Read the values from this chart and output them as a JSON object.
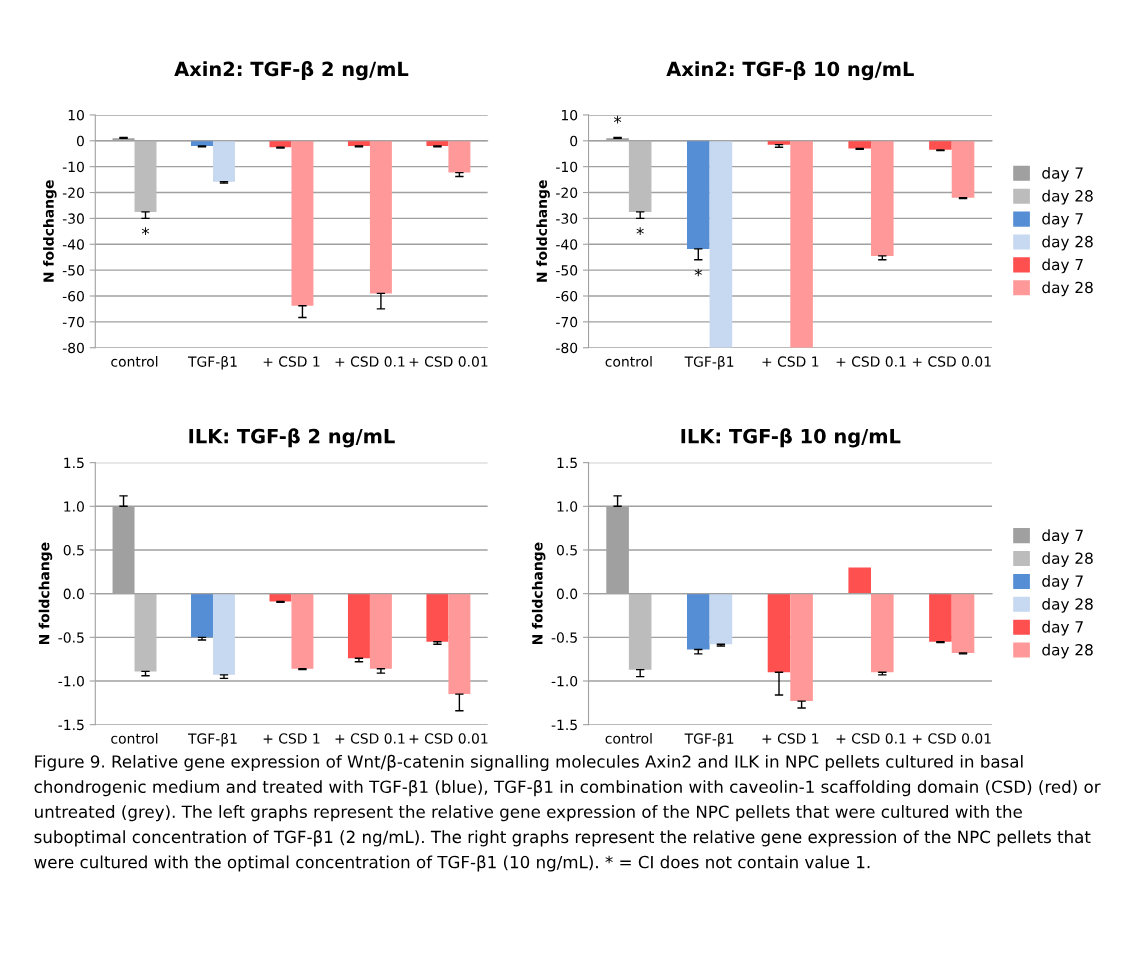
{
  "chart_data": [
    {
      "type": "bar",
      "title": "Axin2: TGF-β 2 ng/mL",
      "ylabel": "N foldchange",
      "categories": [
        "control",
        "TGF-β1",
        "+ CSD 1",
        "+ CSD 0.1",
        "+ CSD 0.01"
      ],
      "ylim": [
        -80,
        10
      ],
      "yticks": [
        -80,
        -70,
        -60,
        -50,
        -40,
        -30,
        -20,
        -10,
        0,
        10
      ],
      "grid": "y",
      "legend": false,
      "series": [
        {
          "color": "#a0a0a0",
          "values": [
            1,
            null,
            null,
            null,
            null
          ],
          "errors": [
            [
              1,
              1.3
            ],
            null,
            null,
            null,
            null
          ]
        },
        {
          "color": "#bcbcbc",
          "values": [
            -27.5,
            null,
            null,
            null,
            null
          ],
          "errors": [
            [
              -30,
              -27.5
            ],
            null,
            null,
            null,
            null
          ]
        },
        {
          "color": "#558ed5",
          "values": [
            null,
            -2,
            null,
            null,
            null
          ],
          "errors": [
            null,
            [
              -2.3,
              -2
            ],
            null,
            null,
            null
          ]
        },
        {
          "color": "#c6d9f1",
          "values": [
            null,
            -15.8,
            null,
            null,
            null
          ],
          "errors": [
            null,
            [
              -16.3,
              -15.8
            ],
            null,
            null,
            null
          ]
        },
        {
          "color": "#ff5050",
          "values": [
            null,
            null,
            -2.5,
            -2,
            -2
          ],
          "errors": [
            null,
            null,
            [
              -2.8,
              -2.5
            ],
            [
              -2.3,
              -2
            ],
            [
              -2.3,
              -2
            ]
          ]
        },
        {
          "color": "#ff9999",
          "values": [
            null,
            null,
            -63.8,
            -59,
            -12.3
          ],
          "errors": [
            null,
            null,
            [
              -68.3,
              -63.8
            ],
            [
              -65,
              -59
            ],
            [
              -13.8,
              -12.3
            ]
          ]
        }
      ],
      "annotations": [
        {
          "text": "*",
          "x": "control",
          "y": -27.5
        }
      ]
    },
    {
      "type": "bar",
      "title": "Axin2: TGF-β 10 ng/mL",
      "ylabel": "N foldchange",
      "categories": [
        "control",
        "TGF-β1",
        "+ CSD 1",
        "+ CSD 0.1",
        "+ CSD 0.01"
      ],
      "ylim": [
        -80,
        10
      ],
      "yticks": [
        -80,
        -70,
        -60,
        -50,
        -40,
        -30,
        -20,
        -10,
        0,
        10
      ],
      "grid": "y",
      "legend": "right",
      "series": [
        {
          "name": "day 7",
          "color": "#a0a0a0",
          "values": [
            1,
            null,
            null,
            null,
            null
          ],
          "errors": [
            [
              1,
              1.3
            ],
            null,
            null,
            null,
            null
          ]
        },
        {
          "name": "day 28",
          "color": "#bcbcbc",
          "values": [
            -27.5,
            null,
            null,
            null,
            null
          ],
          "errors": [
            [
              -30,
              -27.5
            ],
            null,
            null,
            null,
            null
          ]
        },
        {
          "name": "day 7",
          "color": "#558ed5",
          "values": [
            null,
            -41.8,
            null,
            null,
            null
          ],
          "errors": [
            null,
            [
              -46,
              -41.8
            ],
            null,
            null,
            null
          ]
        },
        {
          "name": "day 28",
          "color": "#c6d9f1",
          "values": [
            null,
            -80,
            null,
            null,
            null
          ],
          "errors": [
            null,
            null,
            null,
            null,
            null
          ]
        },
        {
          "name": "day 7",
          "color": "#ff5050",
          "values": [
            null,
            null,
            -1.5,
            -3,
            -3.5
          ],
          "errors": [
            null,
            null,
            [
              -2.5,
              -1.5
            ],
            [
              -3.3,
              -3
            ],
            [
              -3.8,
              -3.5
            ]
          ]
        },
        {
          "name": "day 28",
          "color": "#ff9999",
          "values": [
            null,
            null,
            -80,
            -44.5,
            -22
          ],
          "errors": [
            null,
            null,
            null,
            [
              -46,
              -44.5
            ],
            [
              -22.3,
              -22
            ]
          ]
        }
      ],
      "annotations": [
        {
          "text": "*",
          "x": "control",
          "y": 1
        },
        {
          "text": "*",
          "x": "control",
          "y": -27.5
        },
        {
          "text": "*",
          "x": "TGF-β1",
          "y": -41.8
        }
      ]
    },
    {
      "type": "bar",
      "title": "ILK: TGF-β 2 ng/mL",
      "ylabel": "N foldchange",
      "categories": [
        "control",
        "TGF-β1",
        "+ CSD 1",
        "+ CSD 0.1",
        "+ CSD 0.01"
      ],
      "ylim": [
        -1.5,
        1.5
      ],
      "yticks": [
        -1.5,
        {
          "value": -1,
          "label": "-1.0"
        },
        -0.5,
        {
          "value": 0,
          "label": "0.0"
        },
        0.5,
        {
          "value": 1,
          "label": "1.0"
        },
        1.5
      ],
      "grid": "y",
      "legend": false,
      "series": [
        {
          "color": "#a0a0a0",
          "values": [
            1.0,
            null,
            null,
            null,
            null
          ],
          "errors": [
            [
              1,
              1.12
            ],
            null,
            null,
            null,
            null
          ]
        },
        {
          "color": "#bcbcbc",
          "values": [
            -0.89,
            null,
            null,
            null,
            null
          ],
          "errors": [
            [
              -0.94,
              -0.89
            ],
            null,
            null,
            null,
            null
          ]
        },
        {
          "color": "#558ed5",
          "values": [
            null,
            -0.5,
            null,
            null,
            null
          ],
          "errors": [
            null,
            [
              -0.53,
              -0.5
            ],
            null,
            null,
            null
          ]
        },
        {
          "color": "#c6d9f1",
          "values": [
            null,
            -0.93,
            null,
            null,
            null
          ],
          "errors": [
            null,
            [
              -0.97,
              -0.93
            ],
            null,
            null,
            null
          ]
        },
        {
          "color": "#ff5050",
          "values": [
            null,
            null,
            -0.09,
            -0.74,
            -0.55
          ],
          "errors": [
            null,
            null,
            [
              -0.1,
              -0.09
            ],
            [
              -0.78,
              -0.74
            ],
            [
              -0.58,
              -0.55
            ]
          ]
        },
        {
          "color": "#ff9999",
          "values": [
            null,
            null,
            -0.86,
            -0.86,
            -1.15
          ],
          "errors": [
            null,
            null,
            [
              -0.87,
              -0.86
            ],
            [
              -0.91,
              -0.86
            ],
            [
              -1.34,
              -1.15
            ]
          ]
        }
      ]
    },
    {
      "type": "bar",
      "title": "ILK: TGF-β 10 ng/mL",
      "ylabel": "N foldchange",
      "categories": [
        "control",
        "TGF-β1",
        "+ CSD 1",
        "+ CSD 0.1",
        "+ CSD 0.01"
      ],
      "ylim": [
        -1.5,
        1.5
      ],
      "yticks": [
        -1.5,
        {
          "value": -1,
          "label": "-1.0"
        },
        -0.5,
        {
          "value": 0,
          "label": "0.0"
        },
        0.5,
        {
          "value": 1,
          "label": "1.0"
        },
        1.5
      ],
      "grid": "y",
      "legend": "right",
      "series": [
        {
          "name": "day 7",
          "color": "#a0a0a0",
          "values": [
            1.0,
            null,
            null,
            null,
            null
          ],
          "errors": [
            [
              1,
              1.12
            ],
            null,
            null,
            null,
            null
          ]
        },
        {
          "name": "day 28",
          "color": "#bcbcbc",
          "values": [
            -0.87,
            null,
            null,
            null,
            null
          ],
          "errors": [
            [
              -0.95,
              -0.87
            ],
            null,
            null,
            null,
            null
          ]
        },
        {
          "name": "day 7",
          "color": "#558ed5",
          "values": [
            null,
            -0.64,
            null,
            null,
            null
          ],
          "errors": [
            null,
            [
              -0.69,
              -0.64
            ],
            null,
            null,
            null
          ]
        },
        {
          "name": "day 28",
          "color": "#c6d9f1",
          "values": [
            null,
            -0.58,
            null,
            null,
            null
          ],
          "errors": [
            null,
            [
              -0.6,
              -0.58
            ],
            null,
            null,
            null
          ]
        },
        {
          "name": "day 7",
          "color": "#ff5050",
          "values": [
            null,
            null,
            -0.9,
            0.3,
            -0.55
          ],
          "errors": [
            null,
            null,
            [
              -1.16,
              -0.9
            ],
            null,
            [
              -0.56,
              -0.55
            ]
          ]
        },
        {
          "name": "day 28",
          "color": "#ff9999",
          "values": [
            null,
            null,
            -1.23,
            -0.9,
            -0.68
          ],
          "errors": [
            null,
            null,
            [
              -1.31,
              -1.23
            ],
            [
              -0.93,
              -0.9
            ],
            [
              -0.69,
              -0.68
            ]
          ]
        }
      ],
      "annotations": [
        "Figure 9. Relative gene expression of Wnt/β-catenin signalling molecules Axin2 and ILK in NPC pellets cultured in basal chondrogenic medium and treated with TGF-β1 (blue), TGF-β1 in combination with caveolin-1 scaffolding domain (CSD) (red) or untreated (grey). The left graphs represent the relative gene expression of the NPC pellets that were cultured with the suboptimal concentration of TGF-β1 (2 ng/mL). The right graphs represent the relative gene expression of the NPC pellets that were cultured with the optimal concentration of TGF-β1 (10 ng/mL). * = CI does not contain value 1."
      ]
    }
  ]
}
